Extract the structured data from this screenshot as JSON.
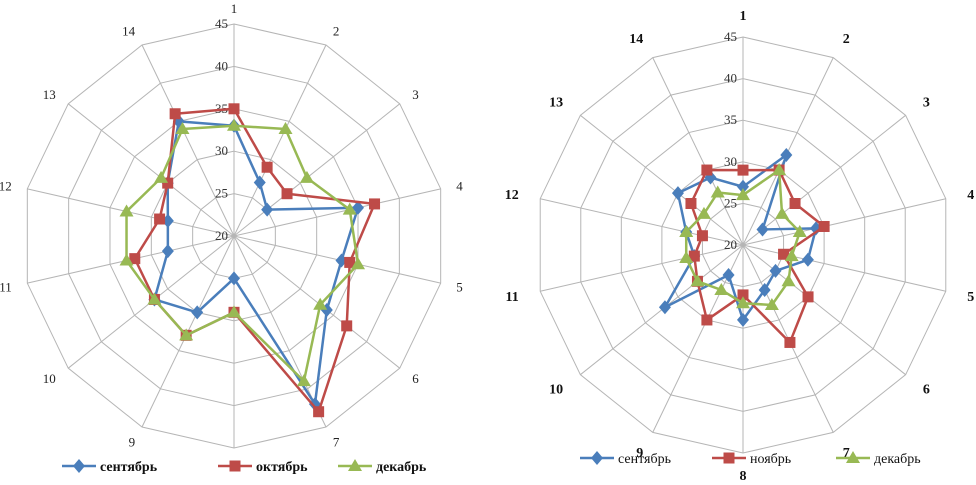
{
  "chart_data": [
    {
      "type": "radar",
      "categories": [
        "1",
        "2",
        "3",
        "4",
        "5",
        "6",
        "7",
        "8",
        "9",
        "10",
        "11",
        "12",
        "13",
        "14"
      ],
      "radial_ticks": [
        "20",
        "25",
        "30",
        "35",
        "40",
        "45"
      ],
      "rlim": [
        20,
        45
      ],
      "grid": true,
      "legend_position": "bottom",
      "series": [
        {
          "name": "сентябрь",
          "color": "#4a7ebb",
          "marker": "diamond",
          "values": [
            33,
            27,
            25,
            35,
            33,
            34,
            42,
            25,
            30,
            32,
            28,
            28,
            30,
            35
          ]
        },
        {
          "name": "октябрь",
          "color": "#be4b48",
          "marker": "square",
          "values": [
            35,
            29,
            28,
            37,
            34,
            37,
            43,
            29,
            33,
            32,
            32,
            29,
            30,
            36
          ]
        },
        {
          "name": "декабрь",
          "color": "#98b954",
          "marker": "triangle",
          "values": [
            33,
            34,
            31,
            34,
            35,
            33,
            39,
            29,
            33,
            32,
            33,
            33,
            31,
            34
          ]
        }
      ]
    },
    {
      "type": "radar",
      "categories": [
        "1",
        "2",
        "3",
        "4",
        "5",
        "6",
        "7",
        "8",
        "9",
        "10",
        "11",
        "12",
        "13",
        "14"
      ],
      "radial_ticks": [
        "20",
        "25",
        "30",
        "35",
        "40",
        "45"
      ],
      "rlim": [
        20,
        45
      ],
      "grid": true,
      "legend_position": "bottom",
      "series": [
        {
          "name": "сентябрь",
          "color": "#4a7ebb",
          "marker": "diamond",
          "values": [
            27,
            32,
            23,
            29,
            28,
            25,
            26,
            29,
            24,
            32,
            26,
            27,
            30,
            29
          ]
        },
        {
          "name": "ноябрь",
          "color": "#be4b48",
          "marker": "square",
          "values": [
            29,
            30,
            28,
            30,
            25,
            30,
            33,
            26,
            30,
            27,
            26,
            25,
            28,
            30
          ]
        },
        {
          "name": "декабрь",
          "color": "#98b954",
          "marker": "triangle",
          "values": [
            26,
            30,
            26,
            27,
            26,
            27,
            28,
            27,
            26,
            27,
            27,
            27,
            26,
            27
          ]
        }
      ]
    }
  ]
}
